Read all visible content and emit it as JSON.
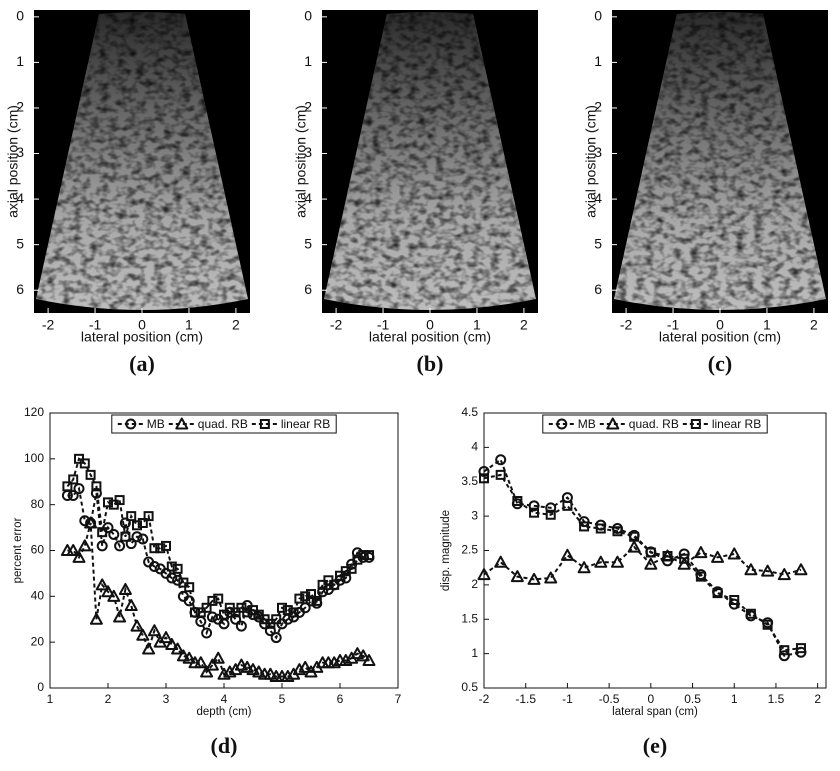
{
  "chart_data": [
    {
      "type": "image",
      "label": "(a)",
      "xlabel": "lateral position (cm)",
      "ylabel": "axial position (cm)",
      "xlim": [
        -2.3,
        2.3
      ],
      "ylim": [
        -0.15,
        6.5
      ],
      "y_reversed": true,
      "xticks": [
        -2,
        -1,
        0,
        1,
        2
      ],
      "yticks": [
        0,
        1,
        2,
        3,
        4,
        5,
        6
      ]
    },
    {
      "type": "image",
      "label": "(b)",
      "xlabel": "lateral position (cm)",
      "ylabel": "axial position (cm)",
      "xlim": [
        -2.3,
        2.3
      ],
      "ylim": [
        -0.15,
        6.5
      ],
      "y_reversed": true,
      "xticks": [
        -2,
        -1,
        0,
        1,
        2
      ],
      "yticks": [
        0,
        1,
        2,
        3,
        4,
        5,
        6
      ]
    },
    {
      "type": "image",
      "label": "(c)",
      "xlabel": "lateral position (cm)",
      "ylabel": "axial position (cm)",
      "xlim": [
        -2.3,
        2.3
      ],
      "ylim": [
        -0.15,
        6.5
      ],
      "y_reversed": true,
      "xticks": [
        -2,
        -1,
        0,
        1,
        2
      ],
      "yticks": [
        0,
        1,
        2,
        3,
        4,
        5,
        6
      ]
    },
    {
      "type": "line",
      "label": "(d)",
      "xlabel": "depth (cm)",
      "ylabel": "percent error",
      "xlim": [
        1,
        7
      ],
      "ylim": [
        0,
        120
      ],
      "xticks": [
        1,
        2,
        3,
        4,
        5,
        6,
        7
      ],
      "yticks": [
        0,
        20,
        40,
        60,
        80,
        100,
        120
      ],
      "legend": "top",
      "x": [
        1.3,
        1.4,
        1.5,
        1.6,
        1.7,
        1.8,
        1.9,
        2.0,
        2.1,
        2.2,
        2.3,
        2.4,
        2.5,
        2.6,
        2.7,
        2.8,
        2.9,
        3.0,
        3.1,
        3.2,
        3.3,
        3.4,
        3.5,
        3.6,
        3.7,
        3.8,
        3.9,
        4.0,
        4.1,
        4.2,
        4.3,
        4.4,
        4.5,
        4.6,
        4.7,
        4.8,
        4.9,
        5.0,
        5.1,
        5.2,
        5.3,
        5.4,
        5.5,
        5.6,
        5.7,
        5.8,
        5.9,
        6.0,
        6.1,
        6.2,
        6.3,
        6.4,
        6.5
      ],
      "series": [
        {
          "name": "MB",
          "color": "#111111",
          "marker": "circle",
          "values": [
            84,
            84,
            87,
            73,
            72,
            85,
            62,
            70,
            67,
            62,
            72,
            63,
            66,
            65,
            55,
            53,
            52,
            50,
            48,
            47,
            40,
            38,
            33,
            29,
            24,
            31,
            30,
            28,
            33,
            30,
            27,
            36,
            32,
            31,
            28,
            25,
            22,
            28,
            30,
            31,
            33,
            35,
            38,
            37,
            42,
            43,
            45,
            47,
            48,
            54,
            59,
            57,
            57
          ]
        },
        {
          "name": "quad. RB",
          "color": "#111111",
          "marker": "triangle",
          "values": [
            60,
            60,
            57,
            62,
            72,
            30,
            45,
            42,
            40,
            31,
            43,
            36,
            27,
            23,
            17,
            25,
            20,
            22,
            19,
            17,
            14,
            13,
            11,
            11,
            7,
            10,
            13,
            6,
            7,
            8,
            10,
            9,
            8,
            7,
            6,
            6,
            5,
            5,
            5,
            6,
            8,
            9,
            7,
            9,
            11,
            11,
            11,
            12,
            12,
            13,
            15,
            14,
            12
          ]
        },
        {
          "name": "linear RB",
          "color": "#111111",
          "marker": "square",
          "values": [
            88,
            91,
            100,
            98,
            93,
            88,
            68,
            81,
            80,
            82,
            66,
            75,
            71,
            72,
            75,
            61,
            61,
            62,
            53,
            52,
            46,
            44,
            33,
            33,
            35,
            38,
            39,
            32,
            35,
            33,
            35,
            33,
            34,
            32,
            30,
            28,
            30,
            35,
            34,
            33,
            39,
            40,
            41,
            38,
            45,
            47,
            45,
            49,
            51,
            52,
            56,
            58,
            58
          ]
        }
      ]
    },
    {
      "type": "line",
      "label": "(e)",
      "xlabel": "lateral span (cm)",
      "ylabel": "disp. magnitude",
      "xlim": [
        -2,
        2.1
      ],
      "ylim": [
        0.5,
        4.5
      ],
      "xticks": [
        -2,
        -1.5,
        -1,
        -0.5,
        0,
        0.5,
        1,
        1.5,
        2
      ],
      "yticks": [
        0.5,
        1,
        1.5,
        2,
        2.5,
        3,
        3.5,
        4,
        4.5
      ],
      "legend": "top",
      "x": [
        -2,
        -1.8,
        -1.6,
        -1.4,
        -1.2,
        -1.0,
        -0.8,
        -0.6,
        -0.4,
        -0.2,
        0,
        0.2,
        0.4,
        0.6,
        0.8,
        1.0,
        1.2,
        1.4,
        1.6,
        1.8
      ],
      "series": [
        {
          "name": "MB",
          "color": "#111111",
          "marker": "circle",
          "values": [
            3.65,
            3.82,
            3.18,
            3.15,
            3.12,
            3.27,
            2.92,
            2.87,
            2.82,
            2.72,
            2.48,
            2.35,
            2.45,
            2.15,
            1.9,
            1.72,
            1.55,
            1.45,
            0.97,
            1.02
          ]
        },
        {
          "name": "quad. RB",
          "color": "#111111",
          "marker": "triangle",
          "values": [
            2.15,
            2.33,
            2.12,
            2.08,
            2.1,
            2.43,
            2.25,
            2.33,
            2.33,
            2.55,
            2.3,
            2.42,
            2.3,
            2.47,
            2.4,
            2.45,
            2.22,
            2.2,
            2.15,
            2.22
          ]
        },
        {
          "name": "linear RB",
          "color": "#111111",
          "marker": "square",
          "values": [
            3.55,
            3.6,
            3.22,
            3.05,
            3.02,
            3.15,
            2.85,
            2.82,
            2.78,
            2.7,
            2.47,
            2.42,
            2.38,
            2.12,
            1.88,
            1.78,
            1.58,
            1.42,
            1.05,
            1.08
          ]
        }
      ]
    }
  ]
}
